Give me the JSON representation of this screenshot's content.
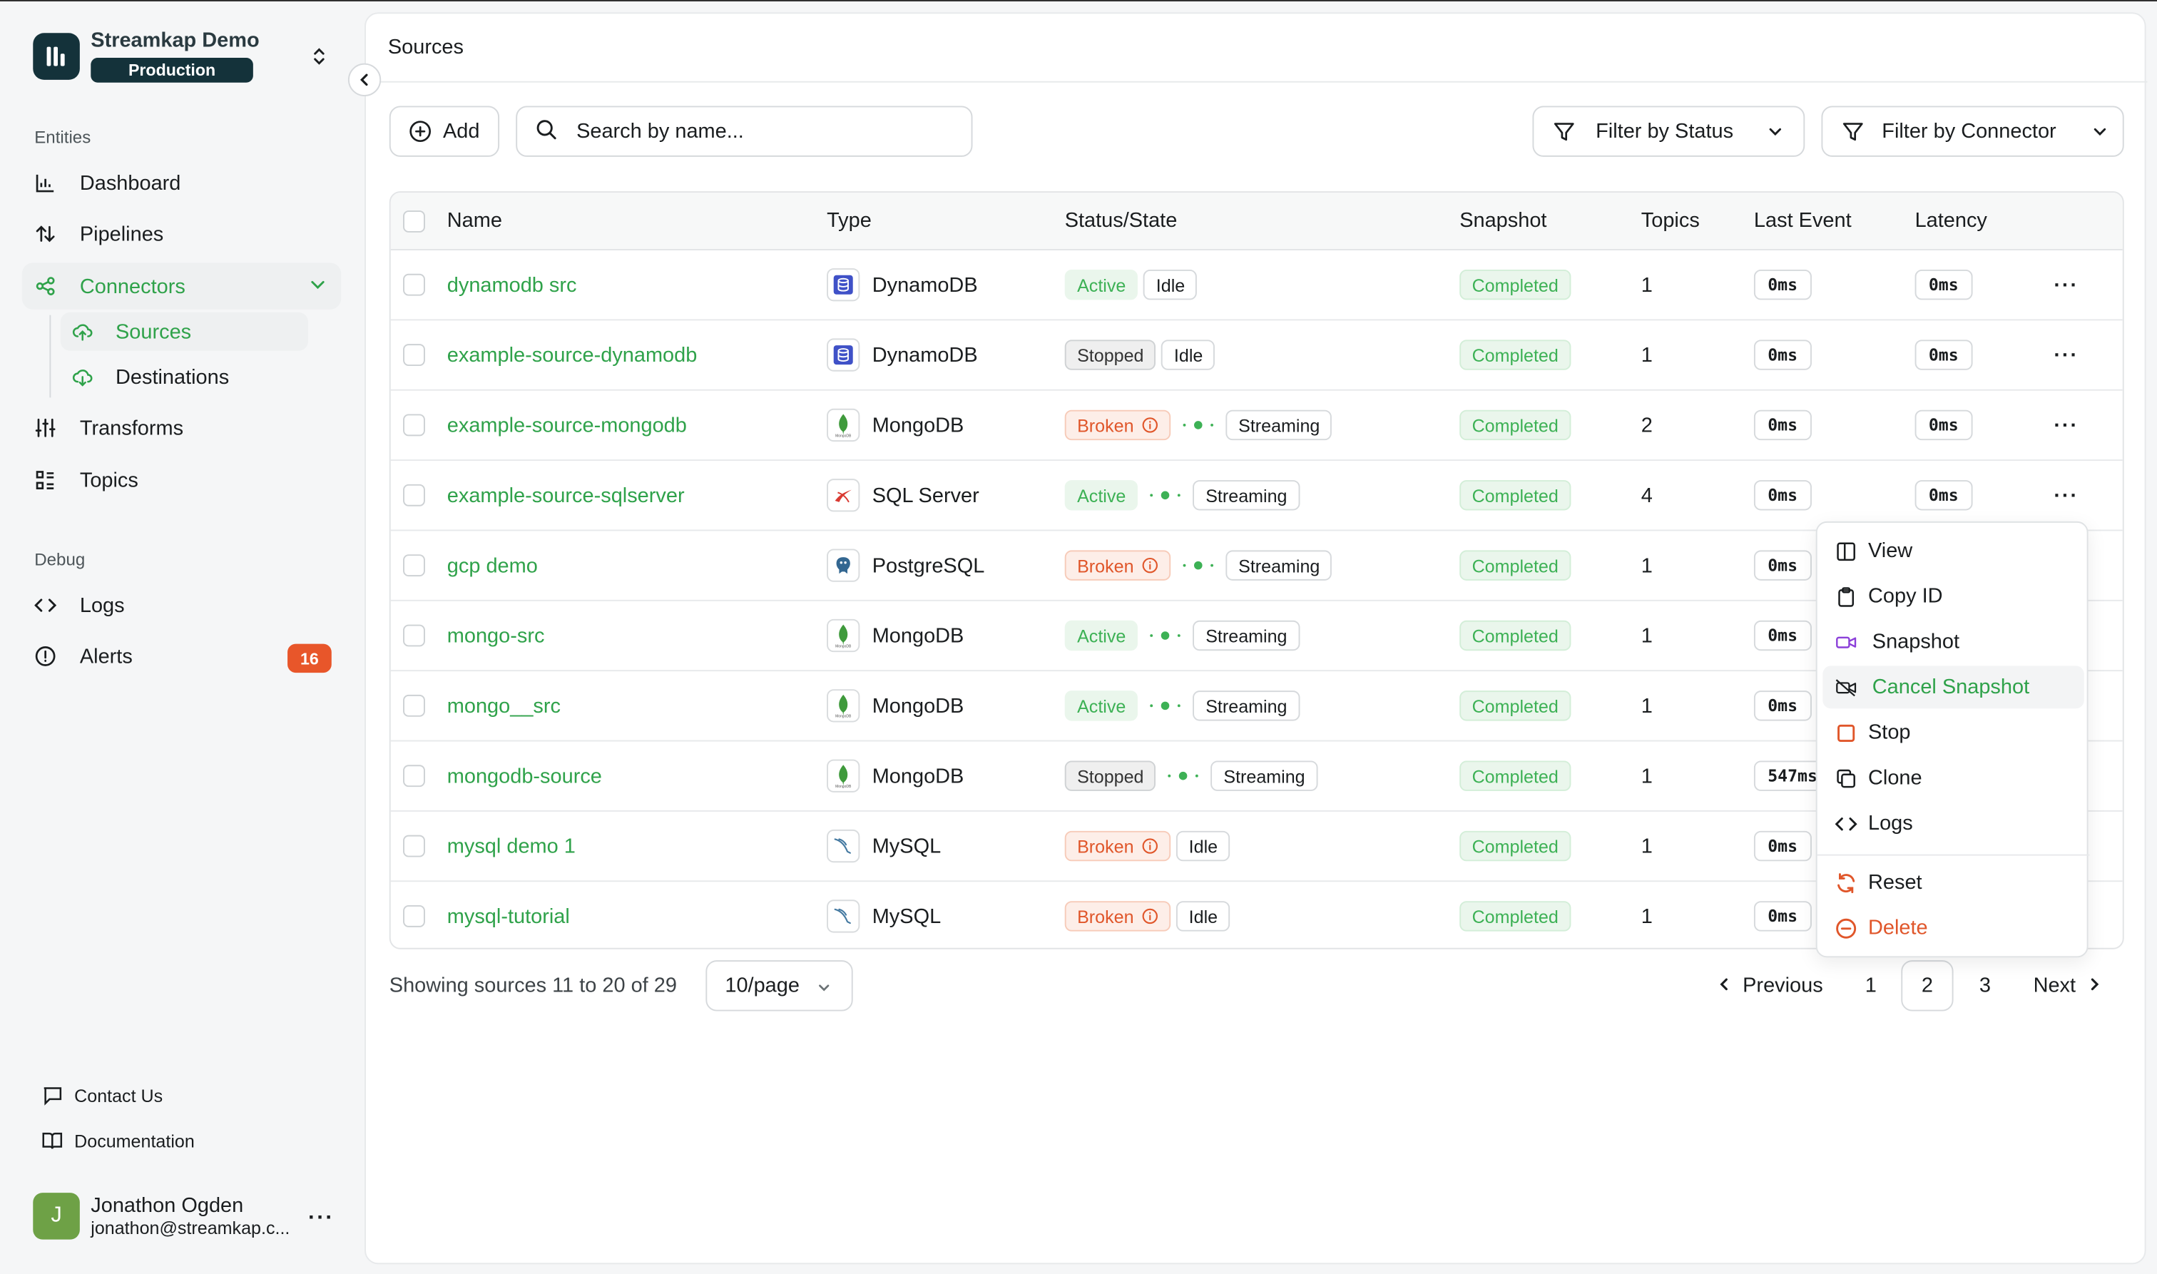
{
  "org": {
    "name": "Streamkap Demo",
    "env": "Production"
  },
  "sidebar": {
    "sections": {
      "entities": "Entities",
      "debug": "Debug"
    },
    "items": {
      "dashboard": "Dashboard",
      "pipelines": "Pipelines",
      "connectors": "Connectors",
      "sources": "Sources",
      "destinations": "Destinations",
      "transforms": "Transforms",
      "topics": "Topics",
      "logs": "Logs",
      "alerts": "Alerts"
    },
    "alerts_count": "16",
    "footer": {
      "contact": "Contact Us",
      "docs": "Documentation"
    },
    "user": {
      "initial": "J",
      "name": "Jonathon Ogden",
      "email": "jonathon@streamkap.c..."
    }
  },
  "page": {
    "breadcrumb": "Sources"
  },
  "toolbar": {
    "add_label": "Add",
    "search_placeholder": "Search by name...",
    "filter_status": "Filter by Status",
    "filter_connector": "Filter by Connector"
  },
  "table": {
    "columns": [
      "Name",
      "Type",
      "Status/State",
      "Snapshot",
      "Topics",
      "Last Event",
      "Latency"
    ],
    "rows": [
      {
        "name": "dynamodb src",
        "type": "DynamoDB",
        "icon": "dynamodb",
        "status": "Active",
        "state": "Idle",
        "stream": false,
        "snapshot": "Completed",
        "topics": "1",
        "last_event": "0ms",
        "latency": "0ms"
      },
      {
        "name": "example-source-dynamodb",
        "type": "DynamoDB",
        "icon": "dynamodb",
        "status": "Stopped",
        "state": "Idle",
        "stream": false,
        "snapshot": "Completed",
        "topics": "1",
        "last_event": "0ms",
        "latency": "0ms"
      },
      {
        "name": "example-source-mongodb",
        "type": "MongoDB",
        "icon": "mongodb",
        "status": "Broken",
        "state": "Streaming",
        "stream": true,
        "snapshot": "Completed",
        "topics": "2",
        "last_event": "0ms",
        "latency": "0ms"
      },
      {
        "name": "example-source-sqlserver",
        "type": "SQL Server",
        "icon": "sqlserver",
        "status": "Active",
        "state": "Streaming",
        "stream": true,
        "snapshot": "Completed",
        "topics": "4",
        "last_event": "0ms",
        "latency": "0ms"
      },
      {
        "name": "gcp demo",
        "type": "PostgreSQL",
        "icon": "postgresql",
        "status": "Broken",
        "state": "Streaming",
        "stream": true,
        "snapshot": "Completed",
        "topics": "1",
        "last_event": "0ms",
        "latency": ""
      },
      {
        "name": "mongo-src",
        "type": "MongoDB",
        "icon": "mongodb",
        "status": "Active",
        "state": "Streaming",
        "stream": true,
        "snapshot": "Completed",
        "topics": "1",
        "last_event": "0ms",
        "latency": ""
      },
      {
        "name": "mongo__src",
        "type": "MongoDB",
        "icon": "mongodb",
        "status": "Active",
        "state": "Streaming",
        "stream": true,
        "snapshot": "Completed",
        "topics": "1",
        "last_event": "0ms",
        "latency": ""
      },
      {
        "name": "mongodb-source",
        "type": "MongoDB",
        "icon": "mongodb",
        "status": "Stopped",
        "state": "Streaming",
        "stream": true,
        "snapshot": "Completed",
        "topics": "1",
        "last_event": "547ms",
        "latency": ""
      },
      {
        "name": "mysql demo 1",
        "type": "MySQL",
        "icon": "mysql",
        "status": "Broken",
        "state": "Idle",
        "stream": false,
        "snapshot": "Completed",
        "topics": "1",
        "last_event": "0ms",
        "latency": ""
      },
      {
        "name": "mysql-tutorial",
        "type": "MySQL",
        "icon": "mysql",
        "status": "Broken",
        "state": "Idle",
        "stream": false,
        "snapshot": "Completed",
        "topics": "1",
        "last_event": "0ms",
        "latency": ""
      }
    ]
  },
  "pagination": {
    "showing": "Showing sources 11 to 20 of 29",
    "per_page": "10/page",
    "previous": "Previous",
    "next": "Next",
    "pages": [
      "1",
      "2",
      "3"
    ],
    "current": "2"
  },
  "context_menu": {
    "items": [
      "View",
      "Copy ID",
      "Snapshot",
      "Cancel Snapshot",
      "Stop",
      "Clone",
      "Logs",
      "Reset",
      "Delete"
    ]
  },
  "colors": {
    "accent": "#2fa24a",
    "danger": "#e0562a",
    "brand_dark": "#14323a"
  }
}
